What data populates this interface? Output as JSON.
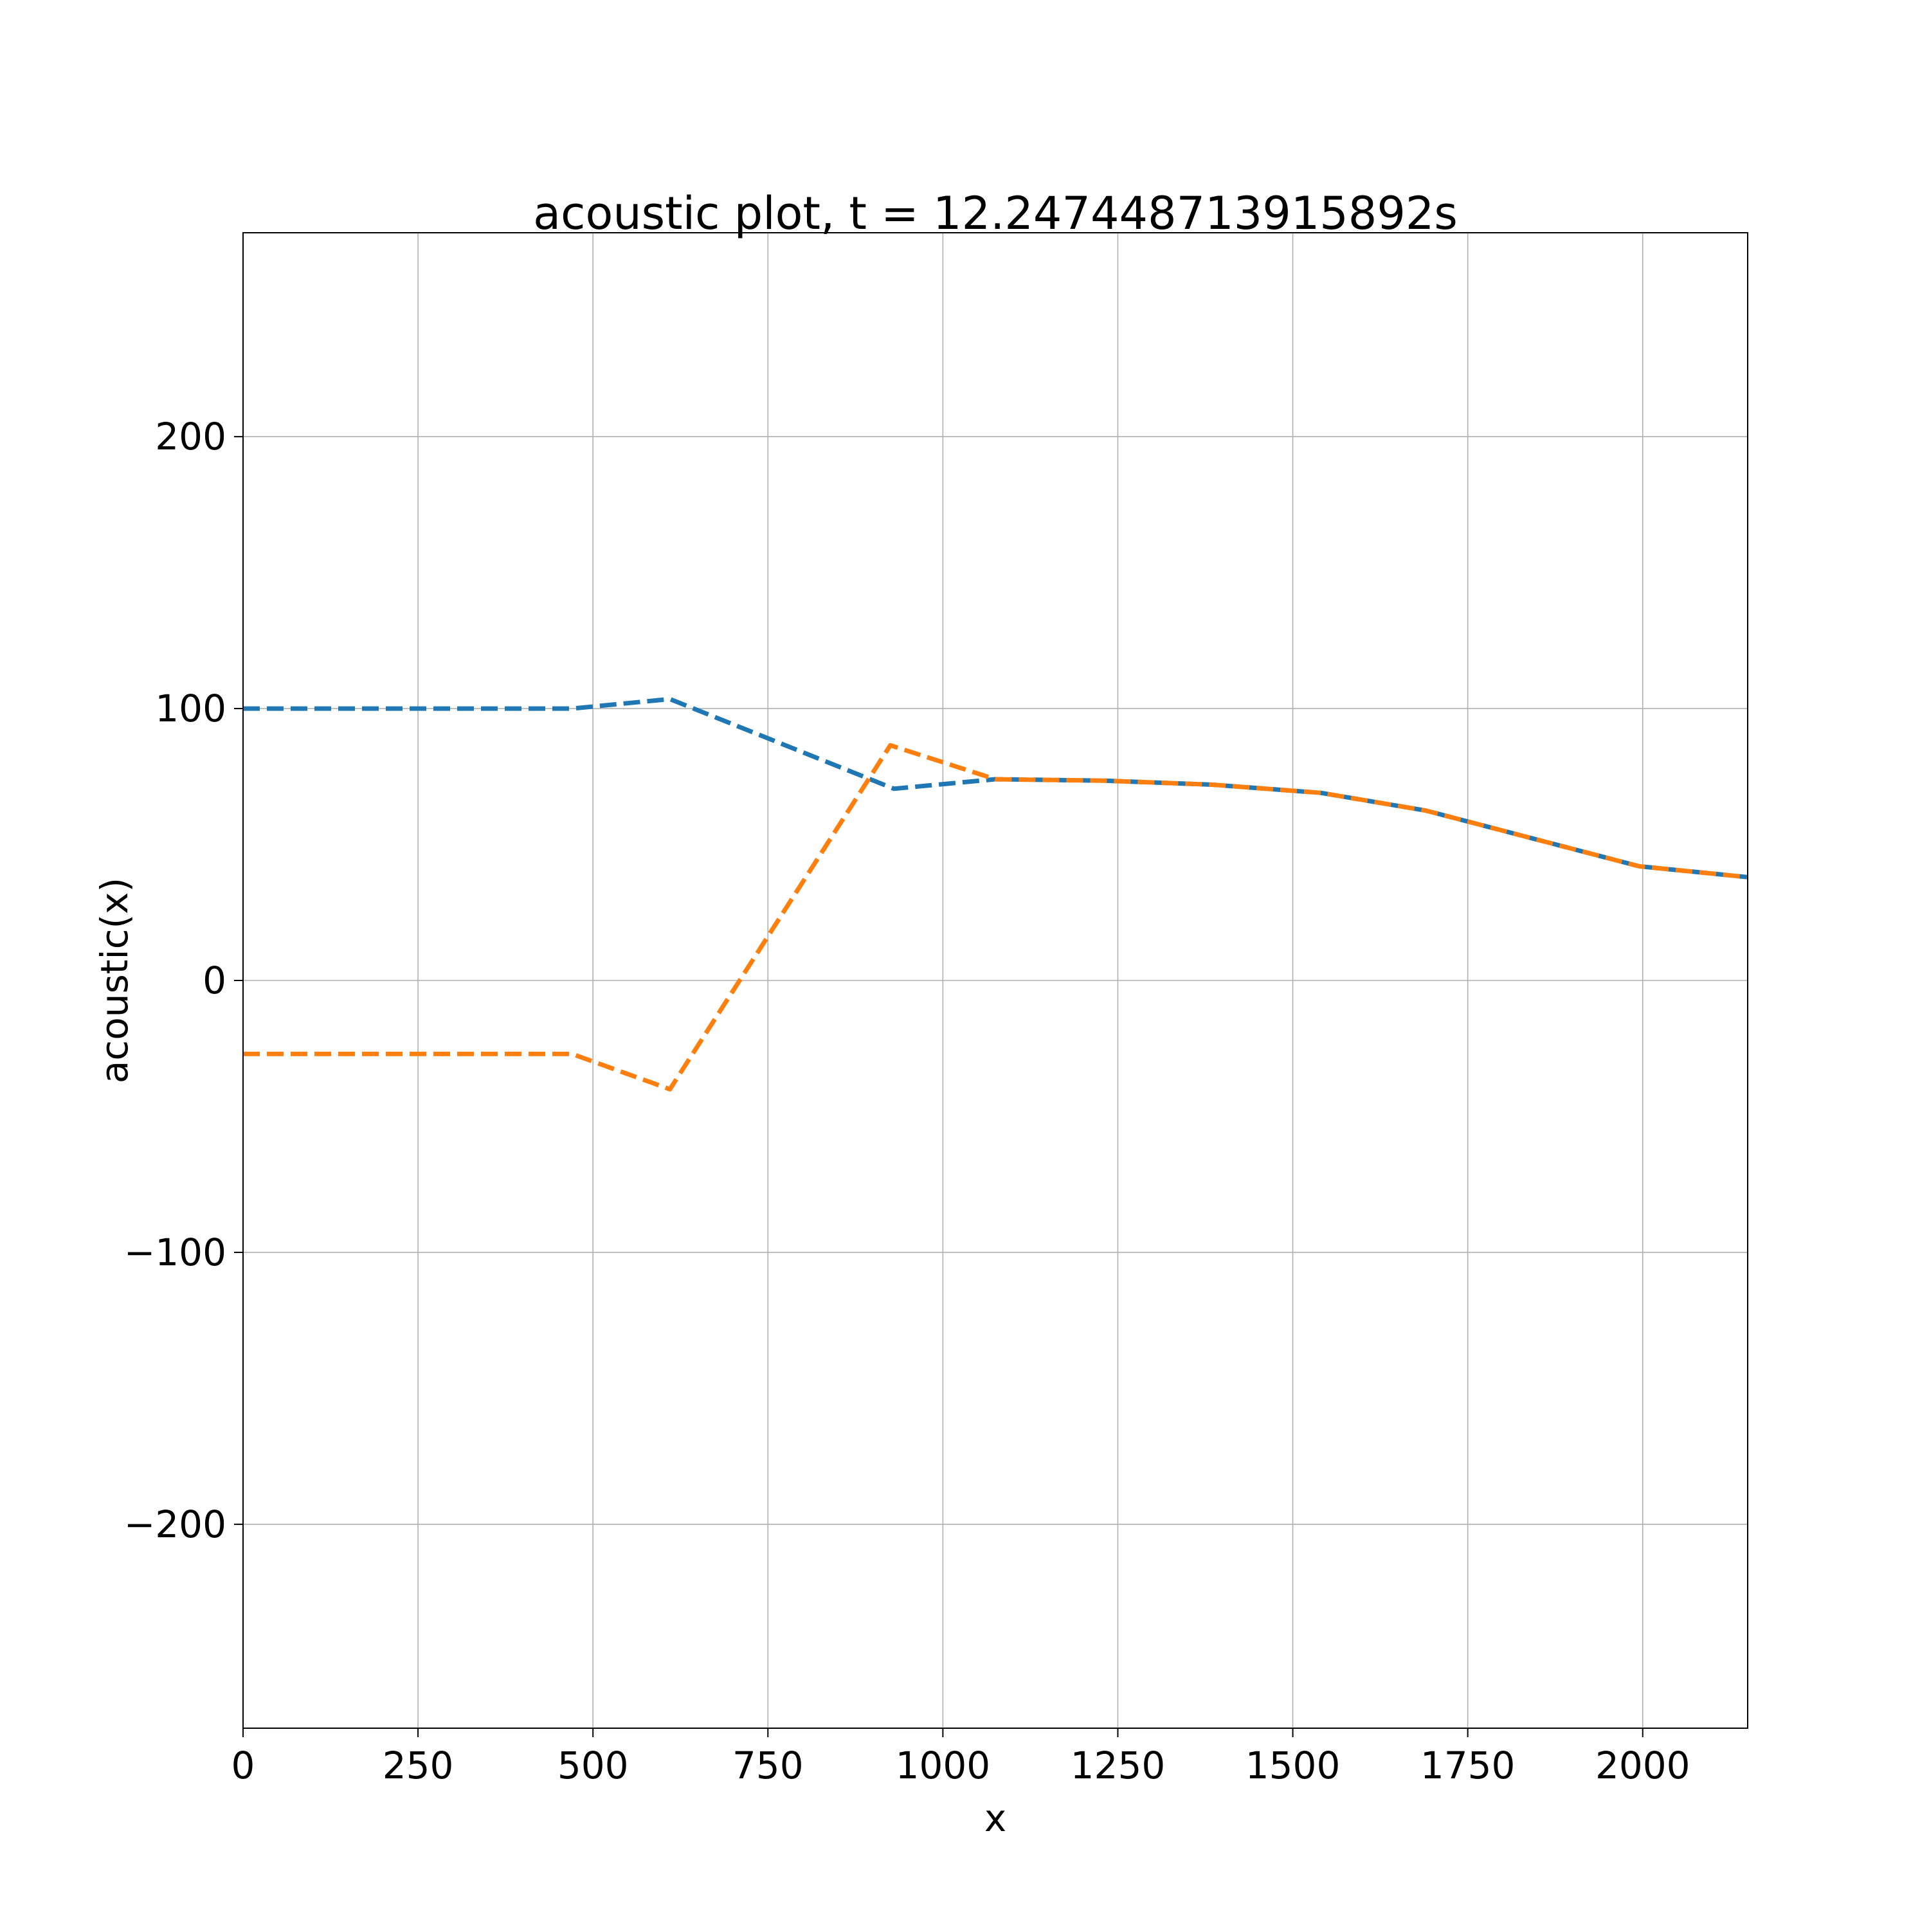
{
  "chart_data": {
    "type": "line",
    "title": "acoustic plot, t = 12.247448713915892s",
    "xlabel": "x",
    "ylabel": "acoustic(x)",
    "xlim": [
      0,
      2150
    ],
    "ylim": [
      -275,
      275
    ],
    "xticks": [
      0,
      250,
      500,
      750,
      1000,
      1250,
      1500,
      1750,
      2000
    ],
    "xtick_labels": [
      "0",
      "250",
      "500",
      "750",
      "1000",
      "1250",
      "1500",
      "1750",
      "2000"
    ],
    "yticks": [
      -200,
      -100,
      0,
      100,
      200
    ],
    "ytick_labels": [
      "−200",
      "−100",
      "0",
      "100",
      "200"
    ],
    "grid": true,
    "legend": "none",
    "series": [
      {
        "color": "#1f77b4",
        "linestyle": "dashed",
        "x": [
          0,
          470,
          610,
          930,
          1075,
          1230,
          1385,
          1540,
          1690,
          1995,
          2150
        ],
        "y": [
          100,
          100,
          103.5,
          70.5,
          74,
          73.5,
          72,
          69,
          62.5,
          42,
          38
        ]
      },
      {
        "color": "#ff7f0e",
        "linestyle": "dashed",
        "x": [
          0,
          470,
          610,
          925,
          1075,
          1230,
          1385,
          1540,
          1690,
          1995,
          2150
        ],
        "y": [
          -27,
          -27,
          -40,
          86.5,
          74,
          73.5,
          72,
          69,
          62.5,
          42,
          38
        ]
      }
    ]
  }
}
